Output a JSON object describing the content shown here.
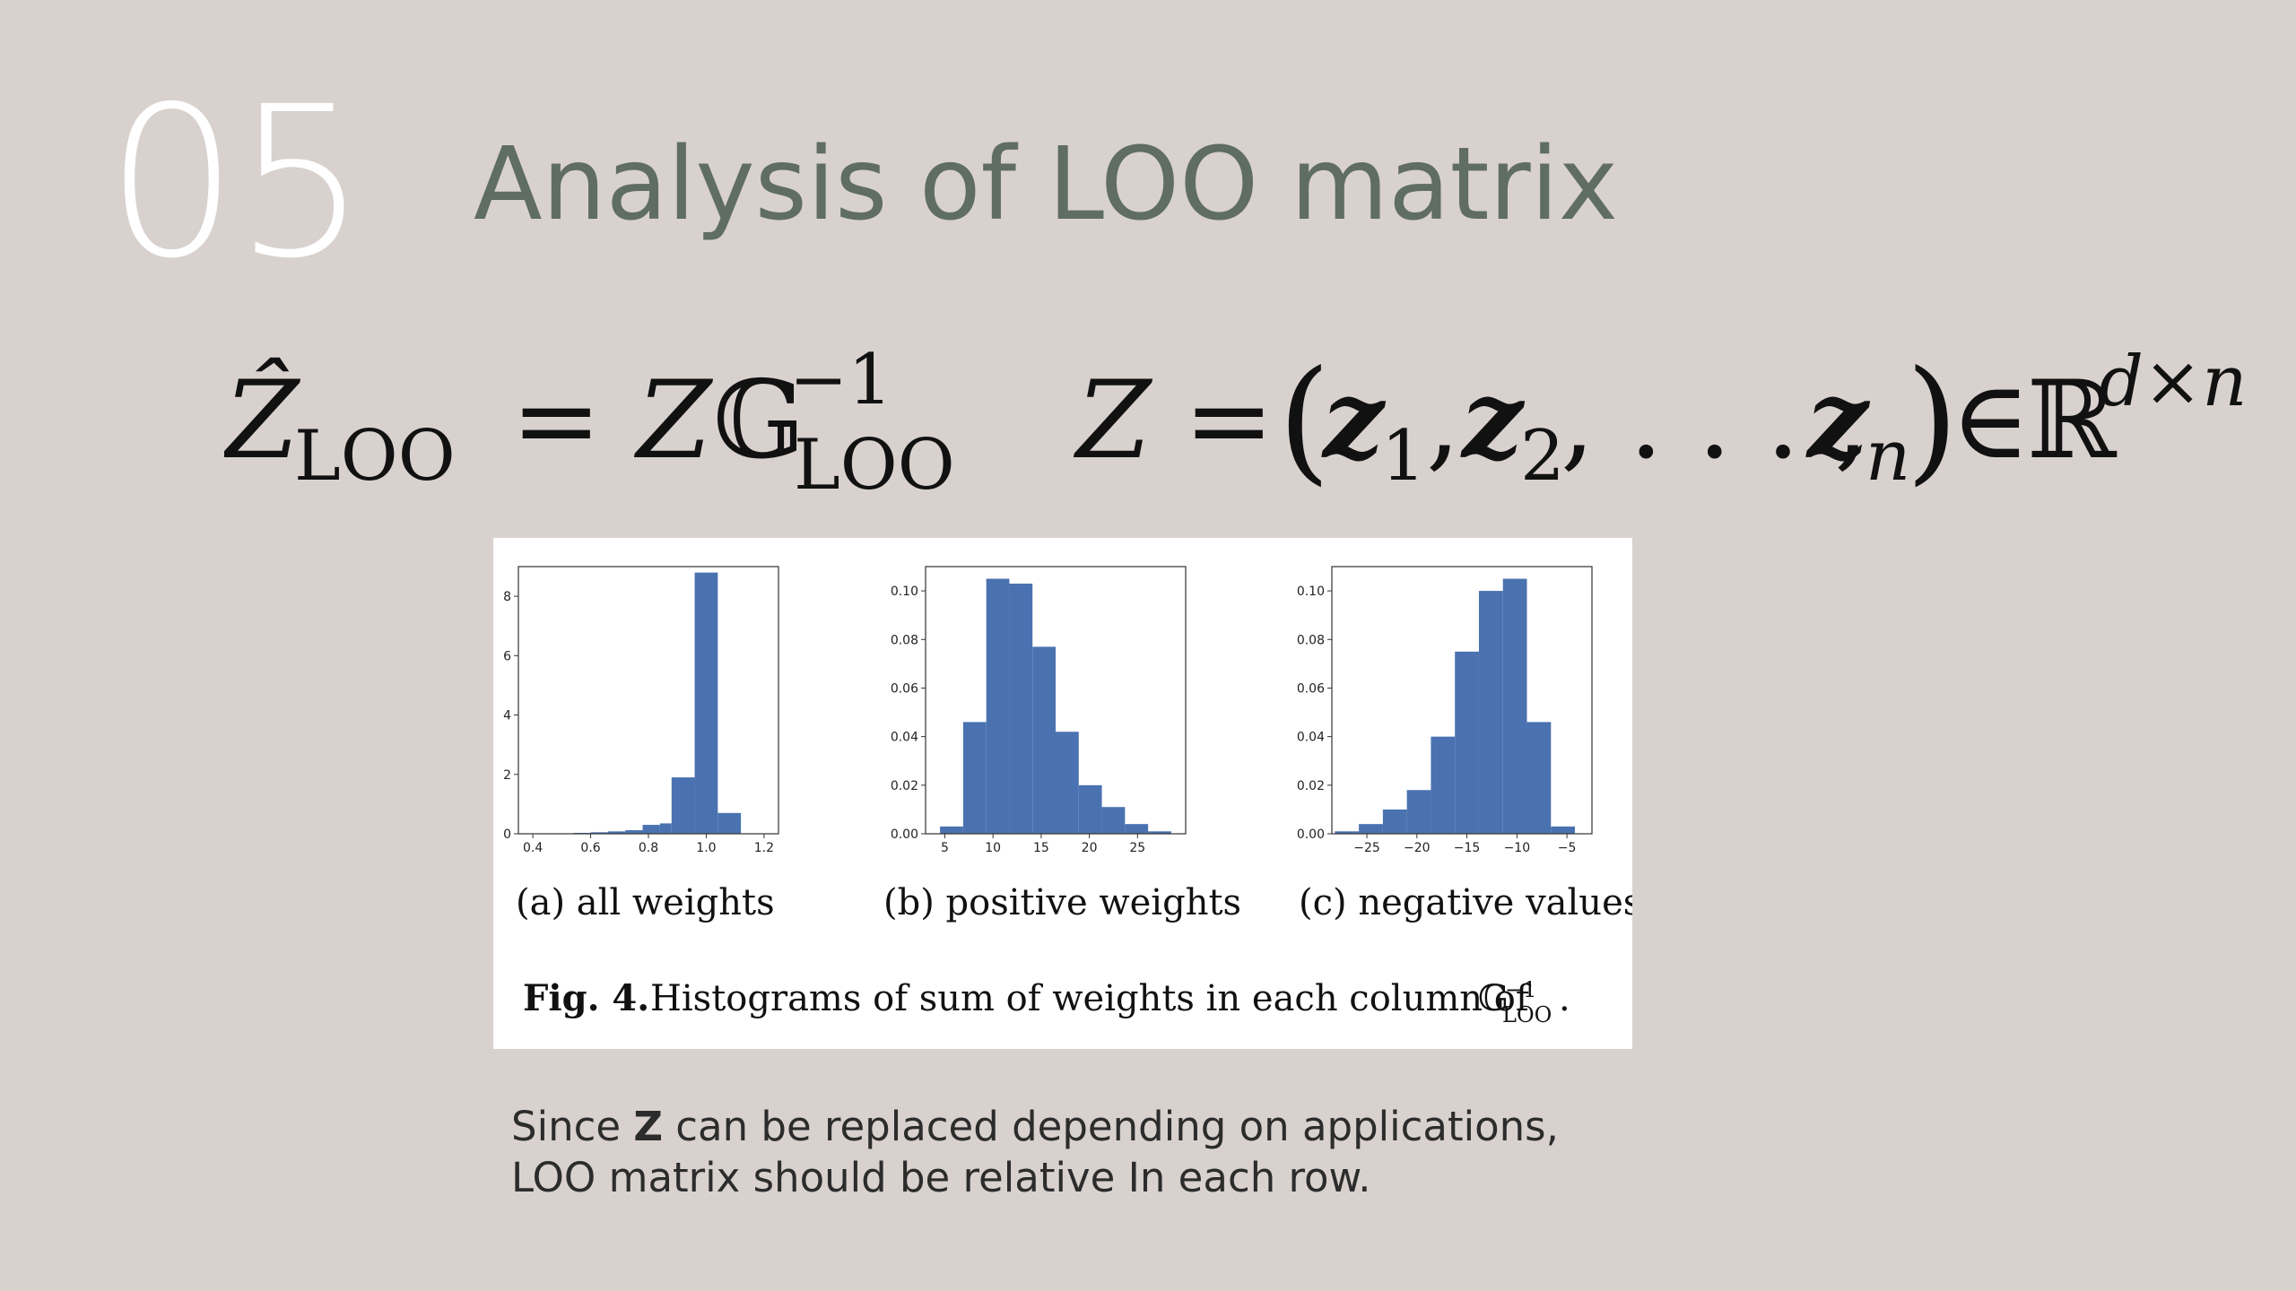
{
  "slide": {
    "number": "05",
    "title": "Analysis of LOO matrix"
  },
  "formula": {
    "lhs_hat": "Ẑ",
    "lhs_sub": "LOO",
    "eq1": "=",
    "z": "Z",
    "g": "𝔾",
    "g_sup": "−1",
    "g_sub": "LOO",
    "z2": "Z",
    "eq2": "=",
    "paren_open": "(",
    "z1": "z",
    "z1_sub": "1",
    "comma1": ",",
    "zz2": "z",
    "zz2_sub": "2",
    "ellipsis": ", . . . ,",
    "zn": "z",
    "zn_sub": "n",
    "paren_close": ")",
    "in": "∈",
    "reals": "ℝ",
    "reals_sup": "d×n"
  },
  "figure": {
    "caption_bold": "Fig. 4.",
    "caption_text": "Histograms of sum of weights in each column of",
    "caption_sym": "𝔾",
    "caption_sup": "−1",
    "caption_sub": "LOO",
    "caption_end": ".",
    "bar_color": "#4a72b0"
  },
  "chart_data": [
    {
      "type": "bar",
      "subcaption": "(a)  all weights",
      "xlim": [
        0.35,
        1.25
      ],
      "ylim": [
        0,
        9
      ],
      "xticks": [
        "0.4",
        "0.6",
        "0.8",
        "1.0",
        "1.2"
      ],
      "xtick_values": [
        0.4,
        0.6,
        0.8,
        1.0,
        1.2
      ],
      "yticks": [
        "0",
        "2",
        "4",
        "6",
        "8"
      ],
      "ytick_values": [
        0,
        2,
        4,
        6,
        8
      ],
      "bin_edges": [
        0.54,
        0.6,
        0.66,
        0.72,
        0.78,
        0.84,
        0.88,
        0.96,
        1.04,
        1.12
      ],
      "values": [
        0.03,
        0.05,
        0.08,
        0.12,
        0.3,
        0.35,
        1.9,
        8.8,
        0.7
      ]
    },
    {
      "type": "bar",
      "subcaption": "(b)  positive weights",
      "xlim": [
        3,
        30
      ],
      "ylim": [
        0,
        0.11
      ],
      "xticks": [
        "5",
        "10",
        "15",
        "20",
        "25"
      ],
      "xtick_values": [
        5,
        10,
        15,
        20,
        25
      ],
      "yticks": [
        "0.00",
        "0.02",
        "0.04",
        "0.06",
        "0.08",
        "0.10"
      ],
      "ytick_values": [
        0,
        0.02,
        0.04,
        0.06,
        0.08,
        0.1
      ],
      "bin_edges": [
        4.5,
        6.9,
        9.3,
        11.7,
        14.1,
        16.5,
        18.9,
        21.3,
        23.7,
        26.1,
        28.5
      ],
      "values": [
        0.003,
        0.046,
        0.105,
        0.103,
        0.077,
        0.042,
        0.02,
        0.011,
        0.004,
        0.001
      ]
    },
    {
      "type": "bar",
      "subcaption": "(c)  negative values",
      "xlim": [
        -28.5,
        -2.5
      ],
      "ylim": [
        0,
        0.11
      ],
      "xticks": [
        "−25",
        "−20",
        "−15",
        "−10",
        "−5"
      ],
      "xtick_values": [
        -25,
        -20,
        -15,
        -10,
        -5
      ],
      "yticks": [
        "0.00",
        "0.02",
        "0.04",
        "0.06",
        "0.08",
        "0.10"
      ],
      "ytick_values": [
        0,
        0.02,
        0.04,
        0.06,
        0.08,
        0.1
      ],
      "bin_edges": [
        -28.2,
        -25.8,
        -23.4,
        -21.0,
        -18.6,
        -16.2,
        -13.8,
        -11.4,
        -9.0,
        -6.6,
        -4.2
      ],
      "values": [
        0.001,
        0.004,
        0.01,
        0.018,
        0.04,
        0.075,
        0.1,
        0.105,
        0.046,
        0.003
      ]
    }
  ],
  "note": {
    "line1_pre": "Since ",
    "line1_bold": "Z",
    "line1_post": " can be replaced depending on applications,",
    "line2": "LOO matrix should be relative In each row."
  }
}
